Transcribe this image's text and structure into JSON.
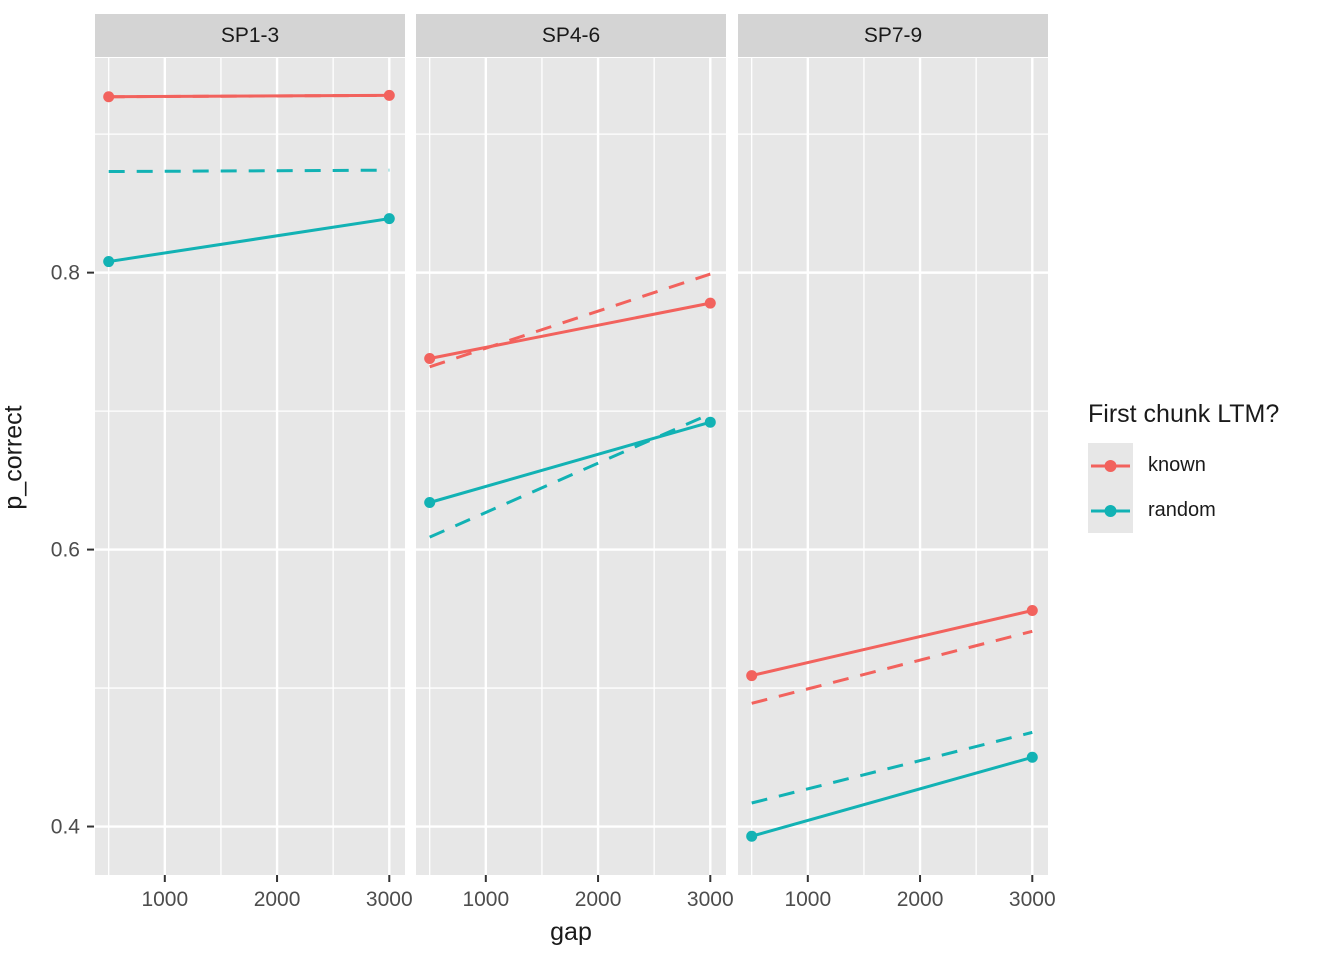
{
  "chart_data": {
    "type": "line",
    "style": "ggplot2 faceted line chart",
    "xlabel": "gap",
    "ylabel": "p_correct",
    "x": [
      500,
      3000
    ],
    "x_ticks": [
      1000,
      2000,
      3000
    ],
    "x_minor_gridlines": [
      500,
      1500,
      2500
    ],
    "y_ticks": [
      0.8,
      0.6,
      0.4
    ],
    "y_minor_gridlines": [
      0.9,
      0.7,
      0.5
    ],
    "x_range": [
      378,
      3140
    ],
    "y_range": [
      0.365,
      0.955
    ],
    "grid": "white major and minor gridlines on gray panel",
    "panel_background": "#e7e7e7",
    "strip_background": "#d4d4d4",
    "gridline_color": "#ffffff",
    "tick_label_color": "#4d4d4d",
    "tick_mark_color": "#333333",
    "colors": {
      "known": "#f2625d",
      "random": "#12b2b4"
    },
    "legend": {
      "title": "First chunk LTM?",
      "position": "right",
      "entries": [
        {
          "label": "known",
          "color": "#f2625d"
        },
        {
          "label": "random",
          "color": "#12b2b4"
        }
      ]
    },
    "facets": [
      {
        "label": "SP1-3",
        "series": [
          {
            "group": "known",
            "line": "dashed",
            "points": false,
            "values": [
              0.927,
              0.928
            ],
            "note": "coincides with solid known line, hidden beneath it"
          },
          {
            "group": "random",
            "line": "dashed",
            "points": false,
            "values": [
              0.873,
              0.874
            ]
          },
          {
            "group": "known",
            "line": "solid",
            "points": true,
            "values": [
              0.927,
              0.928
            ]
          },
          {
            "group": "random",
            "line": "solid",
            "points": true,
            "values": [
              0.808,
              0.839
            ]
          }
        ]
      },
      {
        "label": "SP4-6",
        "series": [
          {
            "group": "known",
            "line": "dashed",
            "points": false,
            "values": [
              0.732,
              0.799
            ]
          },
          {
            "group": "random",
            "line": "dashed",
            "points": false,
            "values": [
              0.609,
              0.698
            ]
          },
          {
            "group": "known",
            "line": "solid",
            "points": true,
            "values": [
              0.738,
              0.778
            ]
          },
          {
            "group": "random",
            "line": "solid",
            "points": true,
            "values": [
              0.634,
              0.692
            ]
          }
        ]
      },
      {
        "label": "SP7-9",
        "series": [
          {
            "group": "known",
            "line": "dashed",
            "points": false,
            "values": [
              0.489,
              0.541
            ]
          },
          {
            "group": "random",
            "line": "dashed",
            "points": false,
            "values": [
              0.417,
              0.468
            ]
          },
          {
            "group": "known",
            "line": "solid",
            "points": true,
            "values": [
              0.509,
              0.556
            ]
          },
          {
            "group": "random",
            "line": "solid",
            "points": true,
            "values": [
              0.393,
              0.45
            ]
          }
        ]
      }
    ]
  }
}
